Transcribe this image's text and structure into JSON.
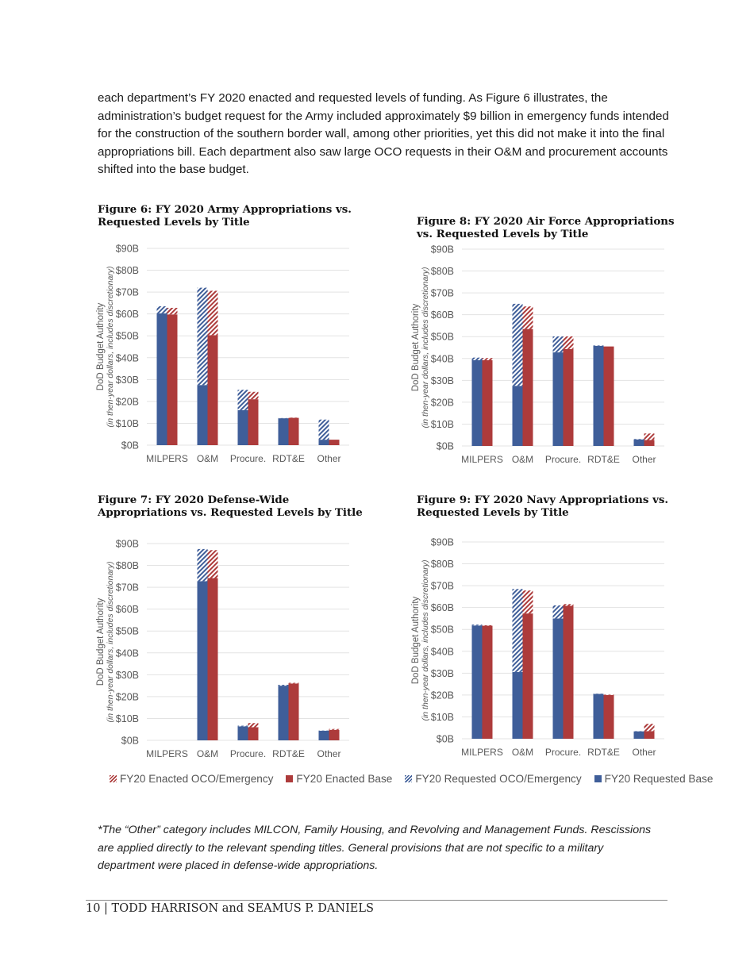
{
  "body_paragraph": "each department’s FY 2020 enacted and requested levels of funding. As Figure 6 illustrates, the administration’s budget request for the Army included approximately $9 billion in emergency funds intended for the construction of the southern border wall, among other priorities, yet this did not make it into the final appropriations bill. Each department also saw large OCO requests in their O&M and procurement accounts shifted into the base budget.",
  "colors": {
    "requested": "#3f5e99",
    "enacted": "#ad3b3b",
    "grid": "#e3e3e3",
    "tick_text": "#595959"
  },
  "chart_data": [
    {
      "id": "fig6",
      "type": "bar",
      "stacked": true,
      "grouped": true,
      "title": "Figure 6: FY 2020 Army Appropriations vs. Requested Levels by Title",
      "ylabel": "DoD Budget Authority",
      "ylabel_sub": "(in then-year dollars, includes discretionary)",
      "ylim": [
        0,
        90
      ],
      "grid": true,
      "yticks": [
        "$0B",
        "$10B",
        "$20B",
        "$30B",
        "$40B",
        "$50B",
        "$60B",
        "$70B",
        "$80B",
        "$90B"
      ],
      "categories": [
        "MILPERS",
        "O&M",
        "Procure.",
        "RDT&E",
        "Other"
      ],
      "requested_base": [
        60.3,
        27.5,
        16.0,
        12.3,
        2.5
      ],
      "requested_oco": [
        3.2,
        44.5,
        9.3,
        0.1,
        9.2
      ],
      "enacted_base": [
        59.8,
        50.3,
        21.0,
        12.5,
        2.5
      ],
      "enacted_oco": [
        3.0,
        20.3,
        3.4,
        0.1,
        0.0
      ]
    },
    {
      "id": "fig8",
      "type": "bar",
      "stacked": true,
      "grouped": true,
      "title": "Figure 8: FY 2020 Air Force Appropriations vs. Requested Levels by Title",
      "ylabel": "DoD Budget Authority",
      "ylabel_sub": "(in then-year dollars, includes discretionary)",
      "ylim": [
        0,
        90
      ],
      "grid": true,
      "yticks": [
        "$0B",
        "$10B",
        "$20B",
        "$30B",
        "$40B",
        "$50B",
        "$60B",
        "$70B",
        "$80B",
        "$90B"
      ],
      "categories": [
        "MILPERS",
        "O&M",
        "Procure.",
        "RDT&E",
        "Other"
      ],
      "requested_base": [
        39.2,
        27.5,
        42.8,
        45.8,
        3.0
      ],
      "requested_oco": [
        1.2,
        37.5,
        7.3,
        0.2,
        0.2
      ],
      "enacted_base": [
        39.2,
        53.5,
        44.3,
        45.5,
        2.7
      ],
      "enacted_oco": [
        1.0,
        10.3,
        5.8,
        0.0,
        3.0
      ]
    },
    {
      "id": "fig7",
      "type": "bar",
      "stacked": true,
      "grouped": true,
      "title": "Figure 7: FY 2020 Defense-Wide Appropriations vs. Requested Levels by Title",
      "ylabel": "DoD Budget Authority",
      "ylabel_sub": "(in then-year dollars, includes discretionary)",
      "ylim": [
        0,
        90
      ],
      "grid": true,
      "yticks": [
        "$0B",
        "$10B",
        "$20B",
        "$30B",
        "$40B",
        "$50B",
        "$60B",
        "$70B",
        "$80B",
        "$90B"
      ],
      "categories": [
        "MILPERS",
        "O&M",
        "Procure.",
        "RDT&E",
        "Other"
      ],
      "requested_base": [
        0,
        72.8,
        6.4,
        25.0,
        4.4
      ],
      "requested_oco": [
        0,
        14.7,
        0.3,
        0.4,
        0.1
      ],
      "enacted_base": [
        0,
        74.2,
        6.0,
        26.0,
        4.8
      ],
      "enacted_oco": [
        0,
        12.8,
        1.9,
        0.3,
        0.4
      ]
    },
    {
      "id": "fig9",
      "type": "bar",
      "stacked": true,
      "grouped": true,
      "title": "Figure 9: FY 2020 Navy Appropriations vs. Requested Levels by Title",
      "ylabel": "DoD Budget Authority",
      "ylabel_sub": "(in then-year dollars, includes discretionary)",
      "ylim": [
        0,
        90
      ],
      "grid": true,
      "yticks": [
        "$0B",
        "$10B",
        "$20B",
        "$30B",
        "$40B",
        "$50B",
        "$60B",
        "$70B",
        "$80B",
        "$90B"
      ],
      "categories": [
        "MILPERS",
        "O&M",
        "Procure.",
        "RDT&E",
        "Other"
      ],
      "requested_base": [
        51.8,
        30.5,
        55.0,
        20.5,
        3.4
      ],
      "requested_oco": [
        0.4,
        38.0,
        6.0,
        0.1,
        0.1
      ],
      "enacted_base": [
        51.7,
        57.3,
        60.8,
        20.0,
        3.5
      ],
      "enacted_oco": [
        0.2,
        10.5,
        0.8,
        0.2,
        3.3
      ]
    }
  ],
  "legend": {
    "position": "bottom",
    "items": [
      {
        "label": "FY20 Enacted OCO/Emergency",
        "style": "hatched",
        "color": "#ad3b3b"
      },
      {
        "label": "FY20 Enacted Base",
        "style": "solid",
        "color": "#ad3b3b"
      },
      {
        "label": "FY20 Requested OCO/Emergency",
        "style": "hatched",
        "color": "#3f5e99"
      },
      {
        "label": "FY20 Requested Base",
        "style": "solid",
        "color": "#3f5e99"
      }
    ]
  },
  "footnote": "*The “Other” category includes MILCON, Family Housing, and Revolving and Management Funds. Rescissions are applied directly to the relevant spending titles. General provisions that are not specific to a military department were placed in defense-wide appropriations.",
  "footer": "10 | TODD HARRISON and SEAMUS P. DANIELS"
}
